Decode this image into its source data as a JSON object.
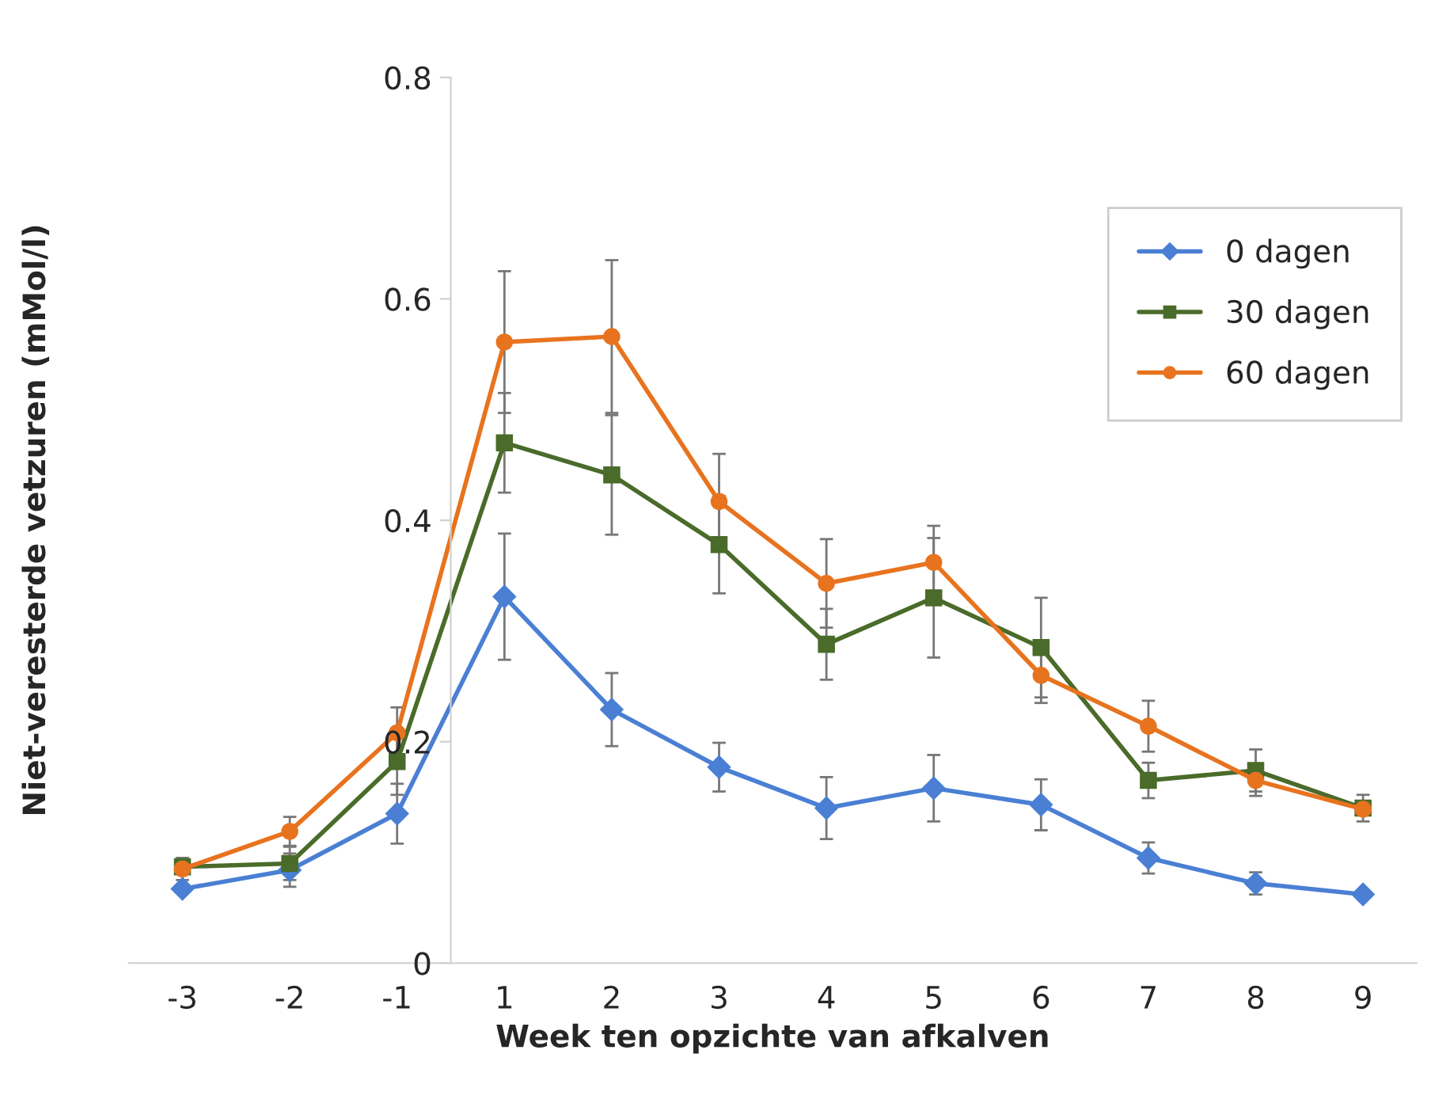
{
  "chart_data": {
    "type": "line",
    "xlabel": "Week ten opzichte van afkalven",
    "ylabel": "Niet-veresterde vetzuren (mMol/l)",
    "categories": [
      "-3",
      "-2",
      "-1",
      "1",
      "2",
      "3",
      "4",
      "5",
      "6",
      "7",
      "8",
      "9"
    ],
    "ylim": [
      0,
      0.8
    ],
    "yticks": [
      0,
      0.2,
      0.4,
      0.6,
      0.8
    ],
    "grid": false,
    "legend": "top right",
    "series": [
      {
        "name": "0 dagen",
        "color": "#4a7fd4",
        "marker": "diamond",
        "values": [
          0.067,
          0.084,
          0.135,
          0.331,
          0.229,
          0.177,
          0.14,
          0.158,
          0.143,
          0.095,
          0.072,
          0.062
        ],
        "errors": [
          null,
          0.015,
          0.027,
          0.057,
          0.033,
          0.022,
          0.028,
          0.03,
          0.023,
          0.014,
          0.01,
          null
        ]
      },
      {
        "name": "30 dagen",
        "color": "#4a6b2a",
        "marker": "square",
        "values": [
          0.087,
          0.09,
          0.182,
          0.47,
          0.441,
          0.378,
          0.288,
          0.33,
          0.285,
          0.165,
          0.174,
          0.14
        ],
        "errors": [
          null,
          0.015,
          0.03,
          0.045,
          0.054,
          0.044,
          0.032,
          0.054,
          0.045,
          0.016,
          0.019,
          0.012
        ]
      },
      {
        "name": "60 dagen",
        "color": "#e8731f",
        "marker": "circle",
        "values": [
          0.085,
          0.119,
          0.208,
          0.561,
          0.566,
          0.417,
          0.343,
          0.362,
          0.26,
          0.214,
          0.165,
          0.139
        ],
        "errors": [
          0.01,
          0.013,
          0.023,
          0.064,
          0.069,
          0.043,
          0.04,
          0.033,
          0.025,
          0.023,
          0.014,
          null
        ]
      }
    ]
  }
}
